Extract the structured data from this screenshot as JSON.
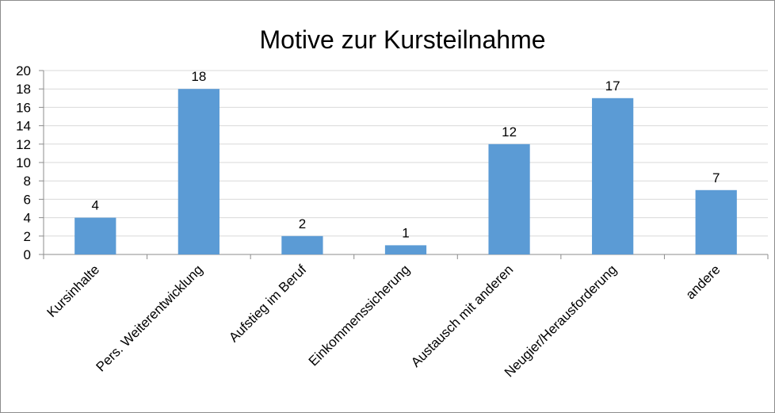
{
  "chart_data": {
    "type": "bar",
    "title": "Motive zur Kursteilnahme",
    "categories": [
      "Kursinhalte",
      "Pers. Weiterentwicklung",
      "Aufstieg im Beruf",
      "Einkommenssicherung",
      "Austausch mit anderen",
      "Neugier/Herausforderung",
      "andere"
    ],
    "values": [
      4,
      18,
      2,
      1,
      12,
      17,
      7
    ],
    "ylim": [
      0,
      20
    ],
    "yticks": [
      0,
      2,
      4,
      6,
      8,
      10,
      12,
      14,
      16,
      18,
      20
    ],
    "grid": true,
    "legend": "none",
    "data_labels": true,
    "bar_color": "#5b9bd5",
    "grid_color": "#d9d9d9",
    "axis_color": "#8c8c8c"
  }
}
